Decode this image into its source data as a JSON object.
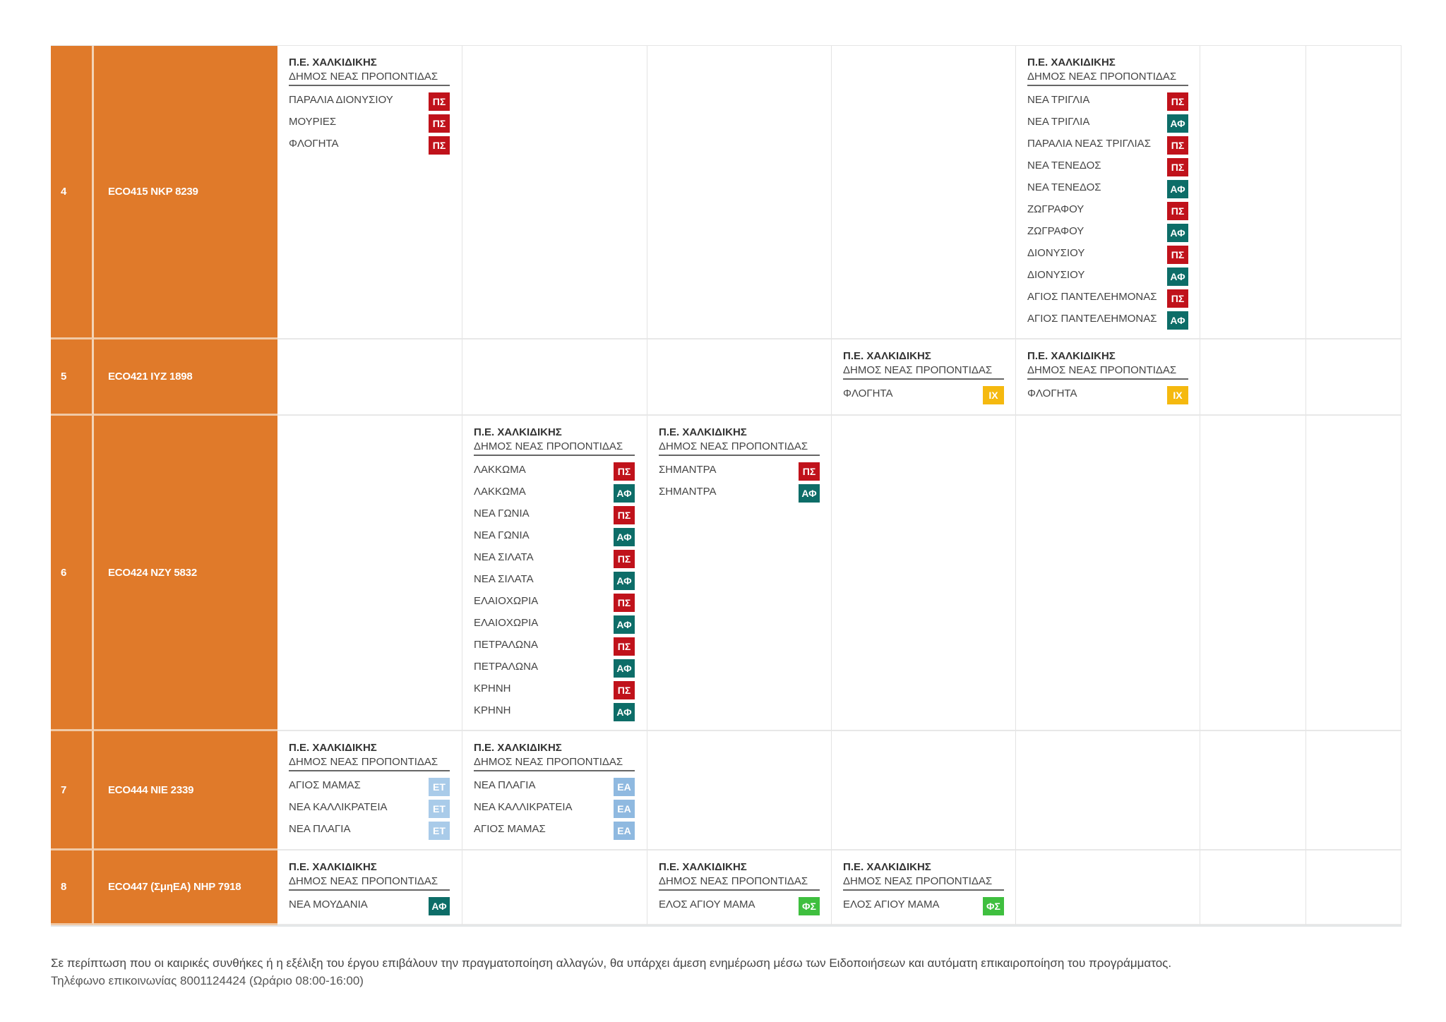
{
  "badge_colors": {
    "ΠΣ": "#c0121b",
    "ΑΦ": "#0d6d68",
    "ΙΧ": "#f5b90f",
    "ΕΤ": "#a9cbe9",
    "ΕΑ": "#8fb9e0",
    "ΦΣ": "#3fbf3f"
  },
  "rows": [
    {
      "num": "4",
      "code": "ECO415  NKP 8239",
      "cells": [
        {
          "region": "Π.Ε. ΧΑΛΚΙΔΙΚΗΣ",
          "municipality": "ΔΗΜΟΣ ΝΕΑΣ ΠΡΟΠΟΝΤΙΔΑΣ",
          "items": [
            {
              "name": "ΠΑΡΑΛΙΑ ΔΙΟΝΥΣΙΟΥ",
              "badge": "ΠΣ"
            },
            {
              "name": "ΜΟΥΡΙΕΣ",
              "badge": "ΠΣ"
            },
            {
              "name": "ΦΛΟΓΗΤΑ",
              "badge": "ΠΣ"
            }
          ]
        },
        null,
        null,
        null,
        {
          "region": "Π.Ε. ΧΑΛΚΙΔΙΚΗΣ",
          "municipality": "ΔΗΜΟΣ ΝΕΑΣ ΠΡΟΠΟΝΤΙΔΑΣ",
          "items": [
            {
              "name": "ΝΕΑ ΤΡΙΓΛΙΑ",
              "badge": "ΠΣ"
            },
            {
              "name": "ΝΕΑ ΤΡΙΓΛΙΑ",
              "badge": "ΑΦ"
            },
            {
              "name": "ΠΑΡΑΛΙΑ ΝΕΑΣ ΤΡΙΓΛΙΑΣ",
              "badge": "ΠΣ"
            },
            {
              "name": "ΝΕΑ ΤΕΝΕΔΟΣ",
              "badge": "ΠΣ"
            },
            {
              "name": "ΝΕΑ ΤΕΝΕΔΟΣ",
              "badge": "ΑΦ"
            },
            {
              "name": "ΖΩΓΡΑΦΟΥ",
              "badge": "ΠΣ"
            },
            {
              "name": "ΖΩΓΡΑΦΟΥ",
              "badge": "ΑΦ"
            },
            {
              "name": "ΔΙΟΝΥΣΙΟΥ",
              "badge": "ΠΣ"
            },
            {
              "name": "ΔΙΟΝΥΣΙΟΥ",
              "badge": "ΑΦ"
            },
            {
              "name": "ΑΓΙΟΣ ΠΑΝΤΕΛΕΗΜΟΝΑΣ",
              "badge": "ΠΣ"
            },
            {
              "name": "ΑΓΙΟΣ ΠΑΝΤΕΛΕΗΜΟΝΑΣ",
              "badge": "ΑΦ"
            }
          ]
        },
        null,
        null
      ]
    },
    {
      "num": "5",
      "code": "ECO421  IYZ 1898",
      "cells": [
        null,
        null,
        null,
        {
          "region": "Π.Ε. ΧΑΛΚΙΔΙΚΗΣ",
          "municipality": "ΔΗΜΟΣ ΝΕΑΣ ΠΡΟΠΟΝΤΙΔΑΣ",
          "items": [
            {
              "name": "ΦΛΟΓΗΤΑ",
              "badge": "ΙΧ"
            }
          ]
        },
        {
          "region": "Π.Ε. ΧΑΛΚΙΔΙΚΗΣ",
          "municipality": "ΔΗΜΟΣ ΝΕΑΣ ΠΡΟΠΟΝΤΙΔΑΣ",
          "items": [
            {
              "name": "ΦΛΟΓΗΤΑ",
              "badge": "ΙΧ"
            }
          ]
        },
        null,
        null
      ]
    },
    {
      "num": "6",
      "code": "ECO424  NZY 5832",
      "cells": [
        null,
        {
          "region": "Π.Ε. ΧΑΛΚΙΔΙΚΗΣ",
          "municipality": "ΔΗΜΟΣ ΝΕΑΣ ΠΡΟΠΟΝΤΙΔΑΣ",
          "items": [
            {
              "name": "ΛΑΚΚΩΜΑ",
              "badge": "ΠΣ"
            },
            {
              "name": "ΛΑΚΚΩΜΑ",
              "badge": "ΑΦ"
            },
            {
              "name": "ΝΕΑ ΓΩΝΙΑ",
              "badge": "ΠΣ"
            },
            {
              "name": "ΝΕΑ ΓΩΝΙΑ",
              "badge": "ΑΦ"
            },
            {
              "name": "ΝΕΑ ΣΙΛΑΤΑ",
              "badge": "ΠΣ"
            },
            {
              "name": "ΝΕΑ ΣΙΛΑΤΑ",
              "badge": "ΑΦ"
            },
            {
              "name": "ΕΛΑΙΟΧΩΡΙΑ",
              "badge": "ΠΣ"
            },
            {
              "name": "ΕΛΑΙΟΧΩΡΙΑ",
              "badge": "ΑΦ"
            },
            {
              "name": "ΠΕΤΡΑΛΩΝΑ",
              "badge": "ΠΣ"
            },
            {
              "name": "ΠΕΤΡΑΛΩΝΑ",
              "badge": "ΑΦ"
            },
            {
              "name": "ΚΡΗΝΗ",
              "badge": "ΠΣ"
            },
            {
              "name": "ΚΡΗΝΗ",
              "badge": "ΑΦ"
            }
          ]
        },
        {
          "region": "Π.Ε. ΧΑΛΚΙΔΙΚΗΣ",
          "municipality": "ΔΗΜΟΣ ΝΕΑΣ ΠΡΟΠΟΝΤΙΔΑΣ",
          "items": [
            {
              "name": "ΣΗΜΑΝΤΡΑ",
              "badge": "ΠΣ"
            },
            {
              "name": "ΣΗΜΑΝΤΡΑ",
              "badge": "ΑΦ"
            }
          ]
        },
        null,
        null,
        null,
        null
      ]
    },
    {
      "num": "7",
      "code": "ECO444  NIE 2339",
      "cells": [
        {
          "region": "Π.Ε. ΧΑΛΚΙΔΙΚΗΣ",
          "municipality": "ΔΗΜΟΣ ΝΕΑΣ ΠΡΟΠΟΝΤΙΔΑΣ",
          "items": [
            {
              "name": "ΑΓΙΟΣ ΜΑΜΑΣ",
              "badge": "ΕΤ"
            },
            {
              "name": "ΝΕΑ ΚΑΛΛΙΚΡΑΤΕΙΑ",
              "badge": "ΕΤ"
            },
            {
              "name": "ΝΕΑ ΠΛΑΓΙΑ",
              "badge": "ΕΤ"
            }
          ]
        },
        {
          "region": "Π.Ε. ΧΑΛΚΙΔΙΚΗΣ",
          "municipality": "ΔΗΜΟΣ ΝΕΑΣ ΠΡΟΠΟΝΤΙΔΑΣ",
          "items": [
            {
              "name": "ΝΕΑ ΠΛΑΓΙΑ",
              "badge": "ΕΑ"
            },
            {
              "name": "ΝΕΑ ΚΑΛΛΙΚΡΑΤΕΙΑ",
              "badge": "ΕΑ"
            },
            {
              "name": "ΑΓΙΟΣ ΜΑΜΑΣ",
              "badge": "ΕΑ"
            }
          ]
        },
        null,
        null,
        null,
        null,
        null
      ]
    },
    {
      "num": "8",
      "code": "ECO447 (ΣμηΕΑ)  NHP 7918",
      "cells": [
        {
          "region": "Π.Ε. ΧΑΛΚΙΔΙΚΗΣ",
          "municipality": "ΔΗΜΟΣ ΝΕΑΣ ΠΡΟΠΟΝΤΙΔΑΣ",
          "items": [
            {
              "name": "ΝΕΑ ΜΟΥΔΑΝΙΑ",
              "badge": "ΑΦ"
            }
          ]
        },
        null,
        {
          "region": "Π.Ε. ΧΑΛΚΙΔΙΚΗΣ",
          "municipality": "ΔΗΜΟΣ ΝΕΑΣ ΠΡΟΠΟΝΤΙΔΑΣ",
          "items": [
            {
              "name": "ΕΛΟΣ ΑΓΙΟΥ ΜΑΜΑ",
              "badge": "ΦΣ"
            }
          ]
        },
        {
          "region": "Π.Ε. ΧΑΛΚΙΔΙΚΗΣ",
          "municipality": "ΔΗΜΟΣ ΝΕΑΣ ΠΡΟΠΟΝΤΙΔΑΣ",
          "items": [
            {
              "name": "ΕΛΟΣ ΑΓΙΟΥ ΜΑΜΑ",
              "badge": "ΦΣ"
            }
          ]
        },
        null,
        null,
        null
      ]
    }
  ],
  "footer": {
    "note": "Σε περίπτωση που οι καιρικές συνθήκες ή η εξέλιξη του έργου επιβάλουν την πραγματοποίηση αλλαγών, θα υπάρχει άμεση ενημέρωση μέσω των Ειδοποιήσεων και αυτόματη επικαιροποίηση του προγράμματος.",
    "contact": "Τηλέφωνο επικοινωνίας 8001124424 (Ωράριο 08:00-16:00)"
  }
}
